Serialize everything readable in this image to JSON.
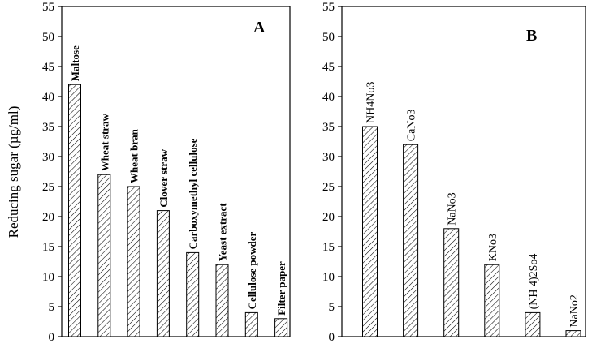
{
  "chart_data": [
    {
      "type": "bar",
      "panel": "A",
      "ylabel": "Reducing sugar  (µg/ml)",
      "ylim": [
        0,
        55
      ],
      "yticks": [
        0,
        5,
        10,
        15,
        20,
        25,
        30,
        35,
        40,
        45,
        50,
        55
      ],
      "grid": false,
      "bar_fill": "hatched",
      "categories": [
        "Maltose",
        "Wheat straw",
        "Wheat bran",
        "Clover straw",
        "Carboxymethyl cellulose",
        "Yeast extract",
        "Cellulose powder",
        "Filter paper"
      ],
      "values": [
        42,
        27,
        25,
        21,
        14,
        12,
        4,
        3
      ]
    },
    {
      "type": "bar",
      "panel": "B",
      "ylabel": "",
      "ylim": [
        0,
        55
      ],
      "yticks": [
        0,
        5,
        10,
        15,
        20,
        25,
        30,
        35,
        40,
        45,
        50,
        55
      ],
      "grid": false,
      "bar_fill": "hatched",
      "categories": [
        "NH4No3",
        "CaNo3",
        "NaNo3",
        "KNo3",
        "(NH 4)2So4",
        "NaNo2"
      ],
      "values": [
        35,
        32,
        18,
        12,
        4,
        1
      ]
    }
  ]
}
